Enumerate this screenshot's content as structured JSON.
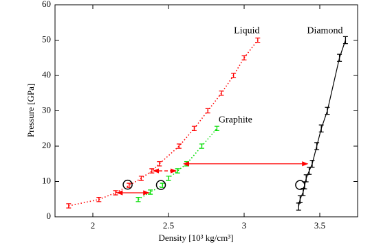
{
  "chart_data": {
    "type": "errorbar-line",
    "xlabel": "Density [10³ kg/cm³]",
    "ylabel": "Pressure [GPa]",
    "xlim": [
      1.75,
      3.75
    ],
    "ylim": [
      0,
      60
    ],
    "xticks": [
      2,
      2.5,
      3,
      3.5
    ],
    "yticks": [
      0,
      10,
      20,
      30,
      40,
      50,
      60
    ],
    "series": [
      {
        "name": "Liquid",
        "color": "#ff0000",
        "linestyle": "dotted",
        "yerr": 0.6,
        "x": [
          1.84,
          2.04,
          2.15,
          2.24,
          2.32,
          2.39,
          2.44,
          2.57,
          2.67,
          2.76,
          2.85,
          2.93,
          3.0,
          3.09
        ],
        "values": [
          3.1,
          4.9,
          6.8,
          8.9,
          10.9,
          13,
          15,
          20,
          25,
          30,
          35,
          40,
          45,
          50
        ]
      },
      {
        "name": "Graphite",
        "color": "#00dd00",
        "linestyle": "dotted",
        "yerr": 0.6,
        "x": [
          2.3,
          2.38,
          2.46,
          2.5,
          2.56,
          2.62,
          2.72,
          2.82
        ],
        "values": [
          4.9,
          7,
          8.9,
          10.9,
          13,
          15,
          20,
          25
        ]
      },
      {
        "name": "Diamond",
        "color": "#000000",
        "linestyle": "solid",
        "yerr": 1.0,
        "x": [
          3.36,
          3.37,
          3.39,
          3.4,
          3.41,
          3.43,
          3.45,
          3.48,
          3.51,
          3.55,
          3.63,
          3.67
        ],
        "values": [
          2.9,
          5,
          7,
          8.9,
          10.9,
          13,
          15,
          20,
          25,
          30,
          45,
          50
        ]
      }
    ],
    "arrows": [
      {
        "x": [
          2.16,
          2.37
        ],
        "y": 6.8,
        "dashed": false
      },
      {
        "x": [
          2.4,
          2.55
        ],
        "y": 13,
        "dashed": true
      },
      {
        "x": [
          2.6,
          3.42
        ],
        "y": 15,
        "dashed": false
      }
    ],
    "circles": [
      {
        "x": 2.23,
        "y": 9.1
      },
      {
        "x": 2.45,
        "y": 9
      },
      {
        "x": 3.37,
        "y": 9
      }
    ]
  }
}
